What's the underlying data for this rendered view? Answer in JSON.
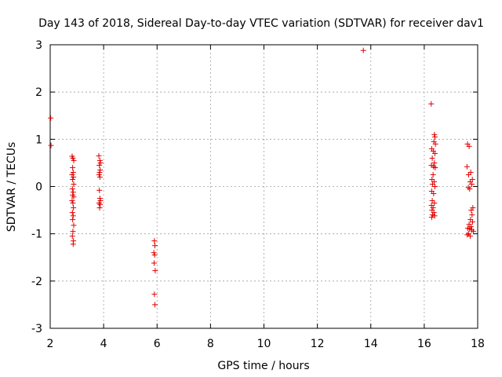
{
  "chart_data": {
    "type": "scatter",
    "title": "Day 143 of 2018, Sidereal Day-to-day VTEC variation (SDTVAR) for receiver dav1",
    "xlabel": "GPS time / hours",
    "ylabel": "SDTVAR / TECUs",
    "xlim": [
      2,
      18
    ],
    "ylim": [
      -3,
      3
    ],
    "xticks": [
      2,
      4,
      6,
      8,
      10,
      12,
      14,
      16,
      18
    ],
    "yticks": [
      -3,
      -2,
      -1,
      0,
      1,
      2,
      3
    ],
    "grid": true,
    "marker": "+",
    "color": "#e00000",
    "series": [
      {
        "name": "dav1",
        "points": [
          [
            2.02,
            1.45
          ],
          [
            2.03,
            0.87
          ],
          [
            2.82,
            0.64
          ],
          [
            2.85,
            0.6
          ],
          [
            2.88,
            0.55
          ],
          [
            2.84,
            0.4
          ],
          [
            2.86,
            0.3
          ],
          [
            2.82,
            0.25
          ],
          [
            2.87,
            0.2
          ],
          [
            2.84,
            0.15
          ],
          [
            2.88,
            0.05
          ],
          [
            2.83,
            -0.05
          ],
          [
            2.86,
            -0.12
          ],
          [
            2.84,
            -0.18
          ],
          [
            2.88,
            -0.22
          ],
          [
            2.82,
            -0.3
          ],
          [
            2.85,
            -0.35
          ],
          [
            2.87,
            -0.45
          ],
          [
            2.83,
            -0.55
          ],
          [
            2.86,
            -0.62
          ],
          [
            2.84,
            -0.7
          ],
          [
            2.88,
            -0.82
          ],
          [
            2.85,
            -0.95
          ],
          [
            2.83,
            -1.05
          ],
          [
            2.87,
            -1.15
          ],
          [
            2.86,
            -1.22
          ],
          [
            3.82,
            0.65
          ],
          [
            3.86,
            0.55
          ],
          [
            3.88,
            0.5
          ],
          [
            3.84,
            0.45
          ],
          [
            3.87,
            0.35
          ],
          [
            3.85,
            0.3
          ],
          [
            3.83,
            0.25
          ],
          [
            3.86,
            0.2
          ],
          [
            3.84,
            -0.08
          ],
          [
            3.86,
            -0.25
          ],
          [
            3.88,
            -0.3
          ],
          [
            3.83,
            -0.35
          ],
          [
            3.87,
            -0.38
          ],
          [
            3.85,
            -0.45
          ],
          [
            5.9,
            -1.15
          ],
          [
            5.92,
            -1.25
          ],
          [
            5.88,
            -1.4
          ],
          [
            5.91,
            -1.45
          ],
          [
            5.89,
            -1.62
          ],
          [
            5.93,
            -1.78
          ],
          [
            5.9,
            -2.28
          ],
          [
            5.92,
            -2.5
          ],
          [
            13.72,
            2.88
          ],
          [
            16.26,
            1.75
          ],
          [
            16.38,
            1.1
          ],
          [
            16.4,
            1.05
          ],
          [
            16.36,
            0.95
          ],
          [
            16.42,
            0.9
          ],
          [
            16.28,
            0.8
          ],
          [
            16.34,
            0.75
          ],
          [
            16.4,
            0.7
          ],
          [
            16.3,
            0.6
          ],
          [
            16.38,
            0.5
          ],
          [
            16.27,
            0.45
          ],
          [
            16.35,
            0.42
          ],
          [
            16.41,
            0.4
          ],
          [
            16.33,
            0.25
          ],
          [
            16.29,
            0.15
          ],
          [
            16.37,
            0.1
          ],
          [
            16.31,
            0.05
          ],
          [
            16.4,
            0.0
          ],
          [
            16.28,
            -0.1
          ],
          [
            16.35,
            -0.15
          ],
          [
            16.3,
            -0.3
          ],
          [
            16.38,
            -0.35
          ],
          [
            16.27,
            -0.4
          ],
          [
            16.33,
            -0.45
          ],
          [
            16.29,
            -0.5
          ],
          [
            16.36,
            -0.55
          ],
          [
            16.31,
            -0.6
          ],
          [
            16.39,
            -0.62
          ],
          [
            16.28,
            -0.65
          ],
          [
            17.62,
            0.9
          ],
          [
            17.68,
            0.85
          ],
          [
            17.6,
            0.42
          ],
          [
            17.74,
            0.3
          ],
          [
            17.66,
            0.25
          ],
          [
            17.8,
            0.15
          ],
          [
            17.72,
            0.1
          ],
          [
            17.78,
            0.05
          ],
          [
            17.65,
            -0.02
          ],
          [
            17.7,
            -0.05
          ],
          [
            17.82,
            -0.45
          ],
          [
            17.76,
            -0.5
          ],
          [
            17.79,
            -0.6
          ],
          [
            17.73,
            -0.7
          ],
          [
            17.81,
            -0.75
          ],
          [
            17.68,
            -0.8
          ],
          [
            17.75,
            -0.85
          ],
          [
            17.63,
            -0.88
          ],
          [
            17.7,
            -0.9
          ],
          [
            17.78,
            -0.92
          ],
          [
            17.84,
            -0.95
          ],
          [
            17.66,
            -1.0
          ],
          [
            17.61,
            -1.02
          ],
          [
            17.72,
            -1.05
          ]
        ]
      }
    ]
  }
}
